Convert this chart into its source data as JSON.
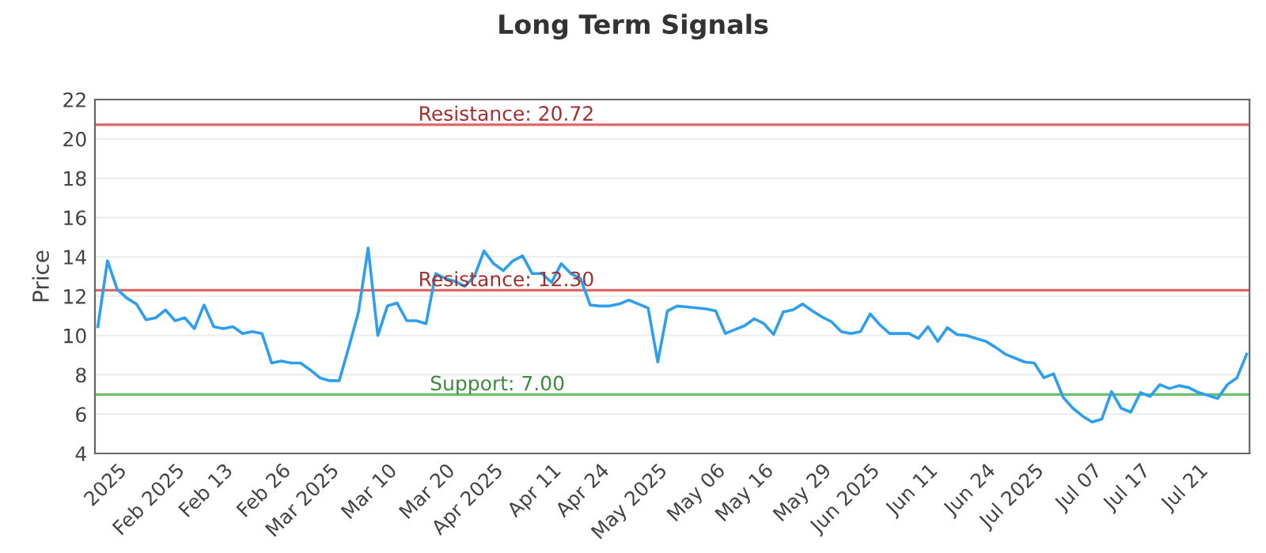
{
  "chart_data": {
    "type": "line",
    "title": "Long Term Signals",
    "ylabel": "Price",
    "categories": [
      null,
      null,
      "2025",
      null,
      null,
      null,
      null,
      null,
      "Feb 2025",
      null,
      null,
      null,
      null,
      "Feb 13",
      null,
      null,
      null,
      null,
      null,
      "Feb 26",
      null,
      null,
      null,
      null,
      "Mar 2025",
      null,
      null,
      null,
      null,
      null,
      "Mar 10",
      null,
      null,
      null,
      null,
      null,
      "Mar 20",
      null,
      null,
      null,
      null,
      "Apr 2025",
      null,
      null,
      null,
      null,
      null,
      "Apr 11",
      null,
      null,
      null,
      null,
      "Apr 24",
      null,
      null,
      null,
      null,
      null,
      "May 2025",
      null,
      null,
      null,
      null,
      null,
      "May 06",
      null,
      null,
      null,
      null,
      "May 16",
      null,
      null,
      null,
      null,
      null,
      "May 29",
      null,
      null,
      null,
      null,
      "Jun 2025",
      null,
      null,
      null,
      null,
      null,
      "Jun 11",
      null,
      null,
      null,
      null,
      null,
      "Jun 24",
      null,
      null,
      null,
      null,
      "Jul 2025",
      null,
      null,
      null,
      null,
      null,
      "Jul 07",
      null,
      null,
      null,
      null,
      "Jul 17",
      null,
      null,
      null,
      null,
      null,
      "Jul 21",
      null,
      null,
      null,
      null,
      null
    ],
    "series": [
      {
        "color": "#2e9fef",
        "values": [
          10.45,
          13.8,
          12.35,
          11.9,
          11.6,
          10.8,
          10.9,
          11.3,
          10.75,
          10.9,
          10.35,
          11.55,
          10.45,
          10.35,
          10.45,
          10.1,
          10.2,
          10.1,
          8.6,
          8.7,
          8.6,
          8.6,
          8.25,
          7.85,
          7.7,
          7.7,
          9.4,
          11.2,
          14.45,
          10.0,
          11.5,
          11.65,
          10.75,
          10.75,
          10.6,
          13.15,
          12.9,
          12.75,
          12.5,
          13.0,
          14.3,
          13.65,
          13.3,
          13.8,
          14.05,
          13.15,
          13.15,
          12.7,
          13.65,
          13.15,
          12.9,
          11.55,
          11.5,
          11.5,
          11.6,
          11.8,
          11.6,
          11.4,
          8.65,
          11.25,
          11.5,
          11.45,
          11.4,
          11.35,
          11.25,
          10.1,
          10.3,
          10.5,
          10.85,
          10.6,
          10.05,
          11.2,
          11.3,
          11.6,
          11.25,
          10.95,
          10.7,
          10.2,
          10.1,
          10.2,
          11.1,
          10.55,
          10.1,
          10.1,
          10.1,
          9.85,
          10.45,
          9.7,
          10.4,
          10.05,
          10.0,
          9.85,
          9.7,
          9.4,
          9.05,
          8.85,
          8.65,
          8.6,
          7.85,
          8.05,
          6.85,
          6.3,
          5.9,
          5.6,
          5.75,
          7.15,
          6.3,
          6.1,
          7.1,
          6.9,
          7.5,
          7.3,
          7.45,
          7.35,
          7.1,
          6.95,
          6.8,
          7.5,
          7.85,
          9.05
        ]
      }
    ],
    "ylim": [
      4,
      22
    ],
    "yticks": [
      4,
      6,
      8,
      10,
      12,
      14,
      16,
      18,
      20,
      22
    ],
    "grid": "y",
    "legend": false,
    "marker": "none",
    "line_style": "solid",
    "ref_lines": [
      {
        "axis": "y",
        "value": 20.72,
        "label": "Resistance: 20.72",
        "color": "#e06666"
      },
      {
        "axis": "y",
        "value": 12.3,
        "label": "Resistance: 12.30",
        "color": "#e06666"
      },
      {
        "axis": "y",
        "value": 7.0,
        "label": "Support: 7.00",
        "color": "#6abf69"
      }
    ]
  }
}
